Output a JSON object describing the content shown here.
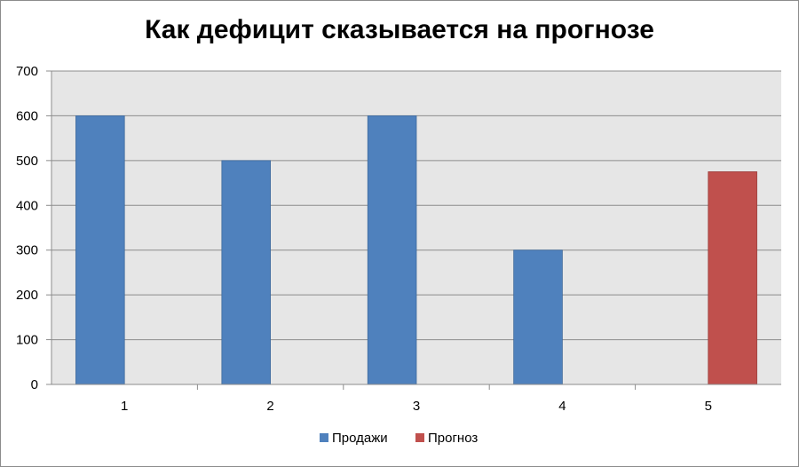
{
  "chart_data": {
    "type": "bar",
    "title": "Как дефицит сказывается на прогнозе",
    "categories": [
      "1",
      "2",
      "3",
      "4",
      "5"
    ],
    "series": [
      {
        "name": "Продажи",
        "values": [
          600,
          500,
          600,
          300,
          null
        ],
        "color": "#4f81bd"
      },
      {
        "name": "Прогноз",
        "values": [
          null,
          null,
          null,
          null,
          475
        ],
        "color": "#c0504d"
      }
    ],
    "ylim": [
      0,
      700
    ],
    "yticks": [
      0,
      100,
      200,
      300,
      400,
      500,
      600,
      700
    ],
    "grid": true,
    "legend_position": "bottom",
    "plot_background": "#e6e6e6"
  }
}
